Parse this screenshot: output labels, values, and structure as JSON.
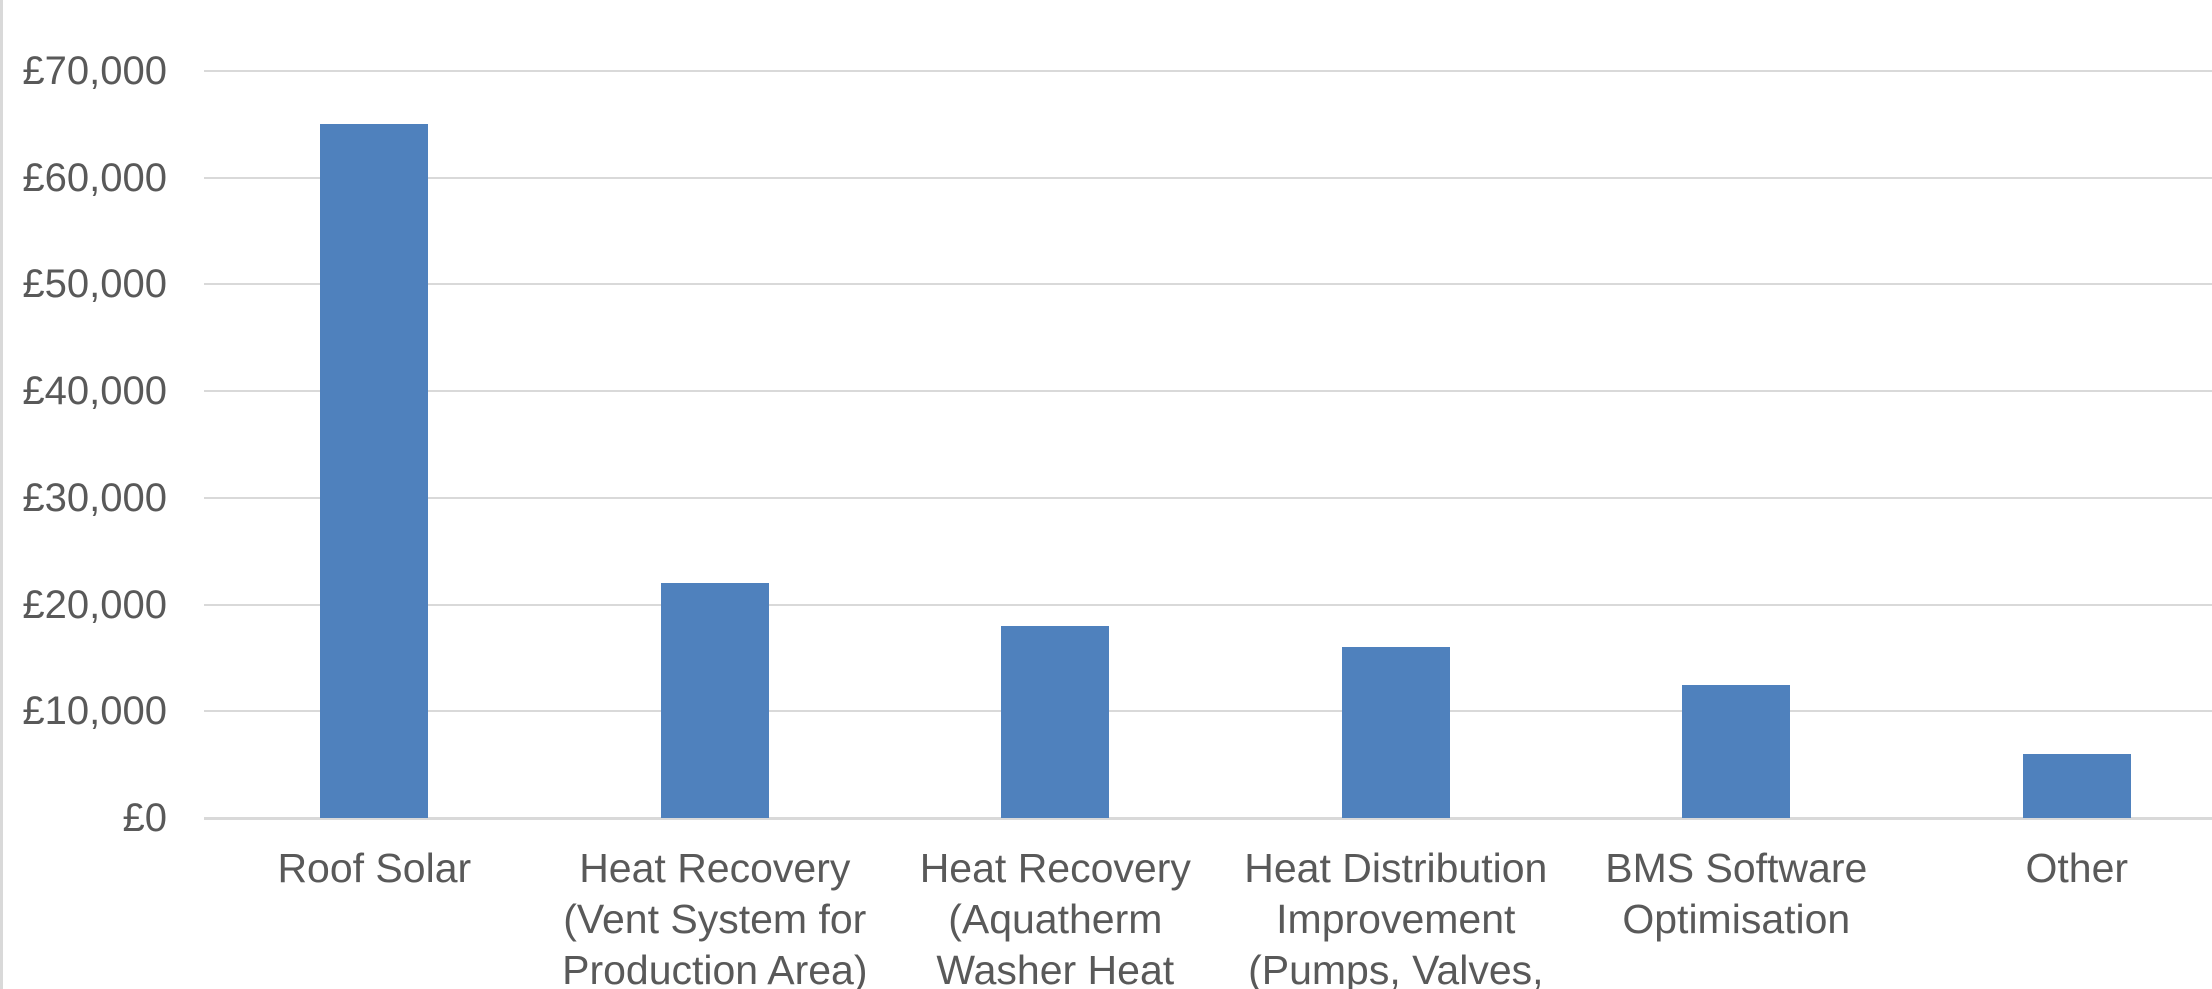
{
  "chart_data": {
    "type": "bar",
    "title": "",
    "xlabel": "",
    "ylabel": "",
    "categories": [
      "Roof Solar",
      "Heat Recovery\n(Vent System for\nProduction Area)",
      "Heat Recovery\n(Aquatherm\nWasher Heat",
      "Heat Distribution\nImprovement\n(Pumps, Valves,",
      "BMS Software\nOptimisation",
      "Other"
    ],
    "values": [
      65000,
      22000,
      18000,
      16000,
      12500,
      6000
    ],
    "y_tick_labels": [
      "£0",
      "£10,000",
      "£20,000",
      "£30,000",
      "£40,000",
      "£50,000",
      "£60,000",
      "£70,000"
    ],
    "y_tick_values": [
      0,
      10000,
      20000,
      30000,
      40000,
      50000,
      60000,
      70000
    ],
    "ylim": [
      0,
      70000
    ],
    "grid": "horizontal",
    "legend": "none",
    "colors": {
      "bar": "#4F81BD",
      "gridline": "#D9D9D9",
      "axis_text": "#595959",
      "background": "#FFFFFF",
      "chart_border": "#D9D9D9"
    }
  }
}
